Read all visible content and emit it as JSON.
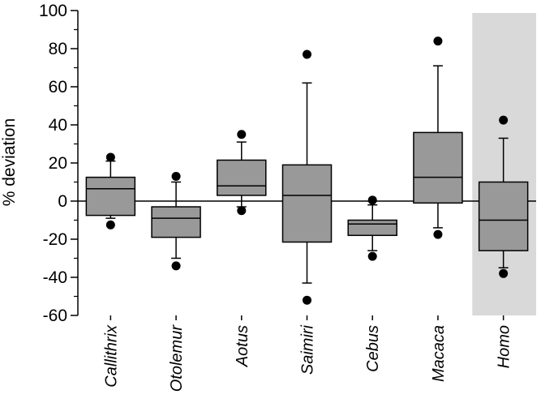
{
  "chart_data": {
    "type": "box",
    "ylabel": "% deviation",
    "xlabel": "",
    "ylim": [
      -60,
      100
    ],
    "yticks": [
      100,
      80,
      60,
      40,
      20,
      0,
      -20,
      -40,
      -60
    ],
    "zero_line": true,
    "grid": false,
    "box_color": "#999999",
    "highlight_color": "#d9d9d9",
    "highlight_category": "Homo",
    "categories": [
      "Callithrix",
      "Otolemur",
      "Aotus",
      "Saimiri",
      "Cebus",
      "Macaca",
      "Homo"
    ],
    "boxes": [
      {
        "name": "Callithrix",
        "whisker_low": -9,
        "q1": -7.5,
        "median": 6.5,
        "q3": 12.5,
        "whisker_high": 21,
        "outliers": [
          23,
          -12.5
        ]
      },
      {
        "name": "Otolemur",
        "whisker_low": -30,
        "q1": -19,
        "median": -9,
        "q3": -3,
        "whisker_high": 10,
        "outliers": [
          13,
          -34
        ]
      },
      {
        "name": "Aotus",
        "whisker_low": -3,
        "q1": 3,
        "median": 8,
        "q3": 21.5,
        "whisker_high": 31,
        "outliers": [
          35,
          -5
        ]
      },
      {
        "name": "Saimiri",
        "whisker_low": -43,
        "q1": -21.5,
        "median": 3,
        "q3": 19,
        "whisker_high": 62,
        "outliers": [
          77,
          -52
        ]
      },
      {
        "name": "Cebus",
        "whisker_low": -26,
        "q1": -18,
        "median": -12,
        "q3": -10,
        "whisker_high": -2,
        "outliers": [
          0.5,
          -29
        ]
      },
      {
        "name": "Macaca",
        "whisker_low": -14,
        "q1": -1,
        "median": 12.5,
        "q3": 36,
        "whisker_high": 71,
        "outliers": [
          84,
          -17.5
        ]
      },
      {
        "name": "Homo",
        "whisker_low": -35,
        "q1": -26,
        "median": -10,
        "q3": 10,
        "whisker_high": 33,
        "outliers": [
          42.5,
          -38
        ]
      }
    ]
  }
}
